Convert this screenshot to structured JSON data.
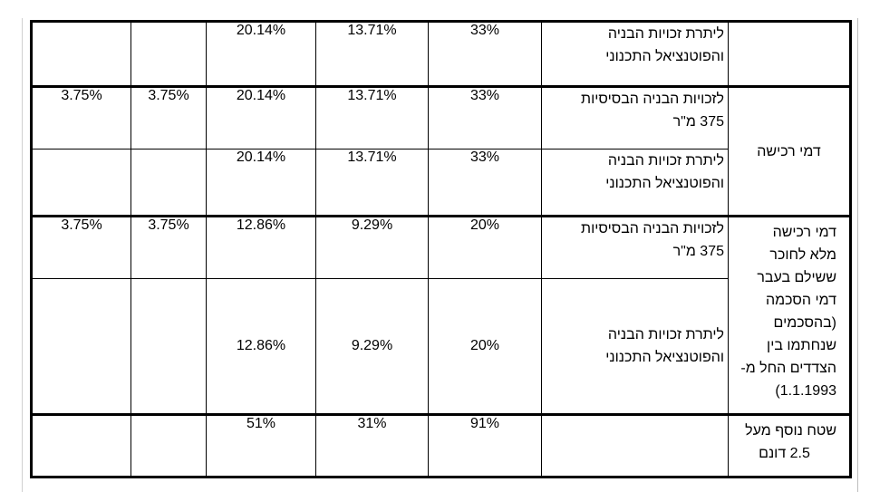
{
  "rows": [
    {
      "c1": "",
      "c2": "",
      "c3": "20.14%",
      "c4": "13.71%",
      "c5": "33%",
      "desc_l1": "ליתרת זכויות הבניה",
      "desc_l2": "והפוטנציאל התכנוני"
    },
    {
      "c1": "3.75%",
      "c2": "3.75%",
      "c3": "20.14%",
      "c4": "13.71%",
      "c5": "33%",
      "desc_l1": "לזכויות הבניה הבסיסיות",
      "desc_l2": "375 מ\"ר"
    },
    {
      "c1": "",
      "c2": "",
      "c3": "20.14%",
      "c4": "13.71%",
      "c5": "33%",
      "desc_l1": "ליתרת זכויות הבניה",
      "desc_l2": "והפוטנציאל התכנוני"
    },
    {
      "c1": "3.75%",
      "c2": "3.75%",
      "c3": "12.86%",
      "c4": "9.29%",
      "c5": "20%",
      "desc_l1": "לזכויות הבניה הבסיסיות",
      "desc_l2": "375 מ\"ר"
    },
    {
      "c1": "",
      "c2": "",
      "c3": "12.86%",
      "c4": "9.29%",
      "c5": "20%",
      "desc_l1": "ליתרת זכויות הבניה",
      "desc_l2": "והפוטנציאל התכנוני"
    },
    {
      "c1": "",
      "c2": "",
      "c3": "51%",
      "c4": "31%",
      "c5": "91%",
      "desc_l1": "",
      "desc_l2": ""
    }
  ],
  "categories": {
    "first": "",
    "acquisition_fee": "דמי רכישה",
    "full_fee_lines": [
      "דמי רכישה",
      "מלא לחוכר",
      "ששילם בעבר",
      "דמי הסכמה",
      "(בהסכמים",
      "שנחתמו בין",
      "הצדדים החל מ-",
      "1.1.1993)"
    ],
    "extra_area_lines": [
      "שטח נוסף מעל",
      "2.5 דונם"
    ]
  }
}
